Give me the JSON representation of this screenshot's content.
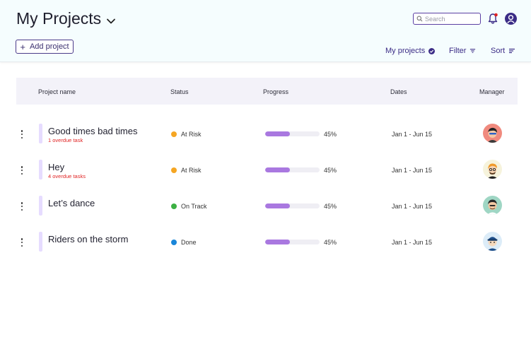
{
  "header": {
    "title": "My Projects",
    "search": {
      "placeholder": "Search"
    },
    "add_project_label": "Add project",
    "my_projects_label": "My projects",
    "filter_label": "Filter",
    "sort_label": "Sort"
  },
  "table": {
    "columns": [
      "Project name",
      "Status",
      "Progress",
      "Dates",
      "Manager"
    ],
    "rows": [
      {
        "name": "Good times bad times",
        "overdue": "1 overdue task",
        "status": "At Risk",
        "status_color": "#f5a623",
        "progress": "45%",
        "dates": "Jan 1 - Jun 15",
        "avatar_bg": "#f08a7e"
      },
      {
        "name": "Hey",
        "overdue": "4 overdue tasks",
        "status": "At Risk",
        "status_color": "#f5a623",
        "progress": "45%",
        "dates": "Jan 1 - Jun 15",
        "avatar_bg": "#f6f3dc"
      },
      {
        "name": "Let’s dance",
        "overdue": "",
        "status": "On Track",
        "status_color": "#3cb043",
        "progress": "45%",
        "dates": "Jan 1 - Jun 15",
        "avatar_bg": "#9fd6c4"
      },
      {
        "name": "Riders on the storm",
        "overdue": "",
        "status": "Done",
        "status_color": "#1a86d9",
        "progress": "45%",
        "dates": "Jan 1 - Jun 15",
        "avatar_bg": "#dcecf8"
      }
    ]
  },
  "colors": {
    "accent": "#3b2c86",
    "progress_fill": "#a978e0",
    "overdue": "#e02424"
  }
}
